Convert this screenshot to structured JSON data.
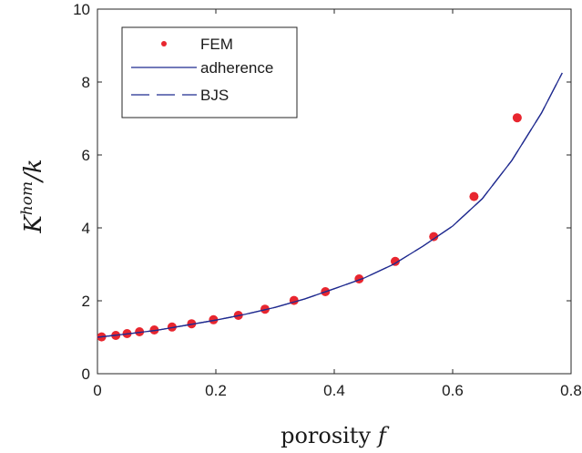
{
  "chart_data": {
    "type": "line",
    "xlabel": "porosity",
    "xlabel_symbol": "f",
    "ylabel_base": "K",
    "ylabel_sup": "hom",
    "ylabel_denominator": "/k",
    "xlim": [
      0,
      0.8
    ],
    "ylim": [
      0,
      10
    ],
    "xticks": [
      0,
      0.2,
      0.4,
      0.6,
      0.8
    ],
    "xtick_labels": [
      "0",
      "0.2",
      "0.4",
      "0.6",
      "0.8"
    ],
    "yticks": [
      0,
      2,
      4,
      6,
      8,
      10
    ],
    "ytick_labels": [
      "0",
      "2",
      "4",
      "6",
      "8",
      "10"
    ],
    "grid": false,
    "legend_position": "top-left",
    "series": [
      {
        "name": "FEM",
        "kind": "markers",
        "color": "#e8262f",
        "x": [
          0.007,
          0.031,
          0.05,
          0.071,
          0.096,
          0.126,
          0.159,
          0.196,
          0.238,
          0.283,
          0.332,
          0.385,
          0.442,
          0.503,
          0.568,
          0.636,
          0.709
        ],
        "y": [
          1.01,
          1.05,
          1.1,
          1.15,
          1.2,
          1.28,
          1.37,
          1.48,
          1.6,
          1.77,
          2.01,
          2.25,
          2.6,
          3.08,
          3.76,
          4.86,
          7.02
        ]
      },
      {
        "name": "adherence",
        "kind": "line",
        "color": "#1f2a8f",
        "x": [
          0.0,
          0.05,
          0.1,
          0.15,
          0.2,
          0.25,
          0.3,
          0.35,
          0.4,
          0.45,
          0.5,
          0.55,
          0.6,
          0.65,
          0.7,
          0.75,
          0.785
        ],
        "y": [
          1.0,
          1.09,
          1.19,
          1.33,
          1.47,
          1.63,
          1.82,
          2.05,
          2.33,
          2.62,
          3.0,
          3.5,
          4.05,
          4.8,
          5.85,
          7.15,
          8.25
        ]
      },
      {
        "name": "BJS",
        "kind": "dashed",
        "color": "#1f2a8f",
        "x": [
          0.0,
          0.05,
          0.1,
          0.15,
          0.2,
          0.25,
          0.3,
          0.35,
          0.4,
          0.45,
          0.5,
          0.55,
          0.6,
          0.65,
          0.7,
          0.75,
          0.785
        ],
        "y": [
          1.0,
          1.09,
          1.19,
          1.33,
          1.47,
          1.63,
          1.82,
          2.05,
          2.33,
          2.62,
          3.0,
          3.5,
          4.05,
          4.8,
          5.85,
          7.15,
          8.25
        ]
      }
    ]
  }
}
